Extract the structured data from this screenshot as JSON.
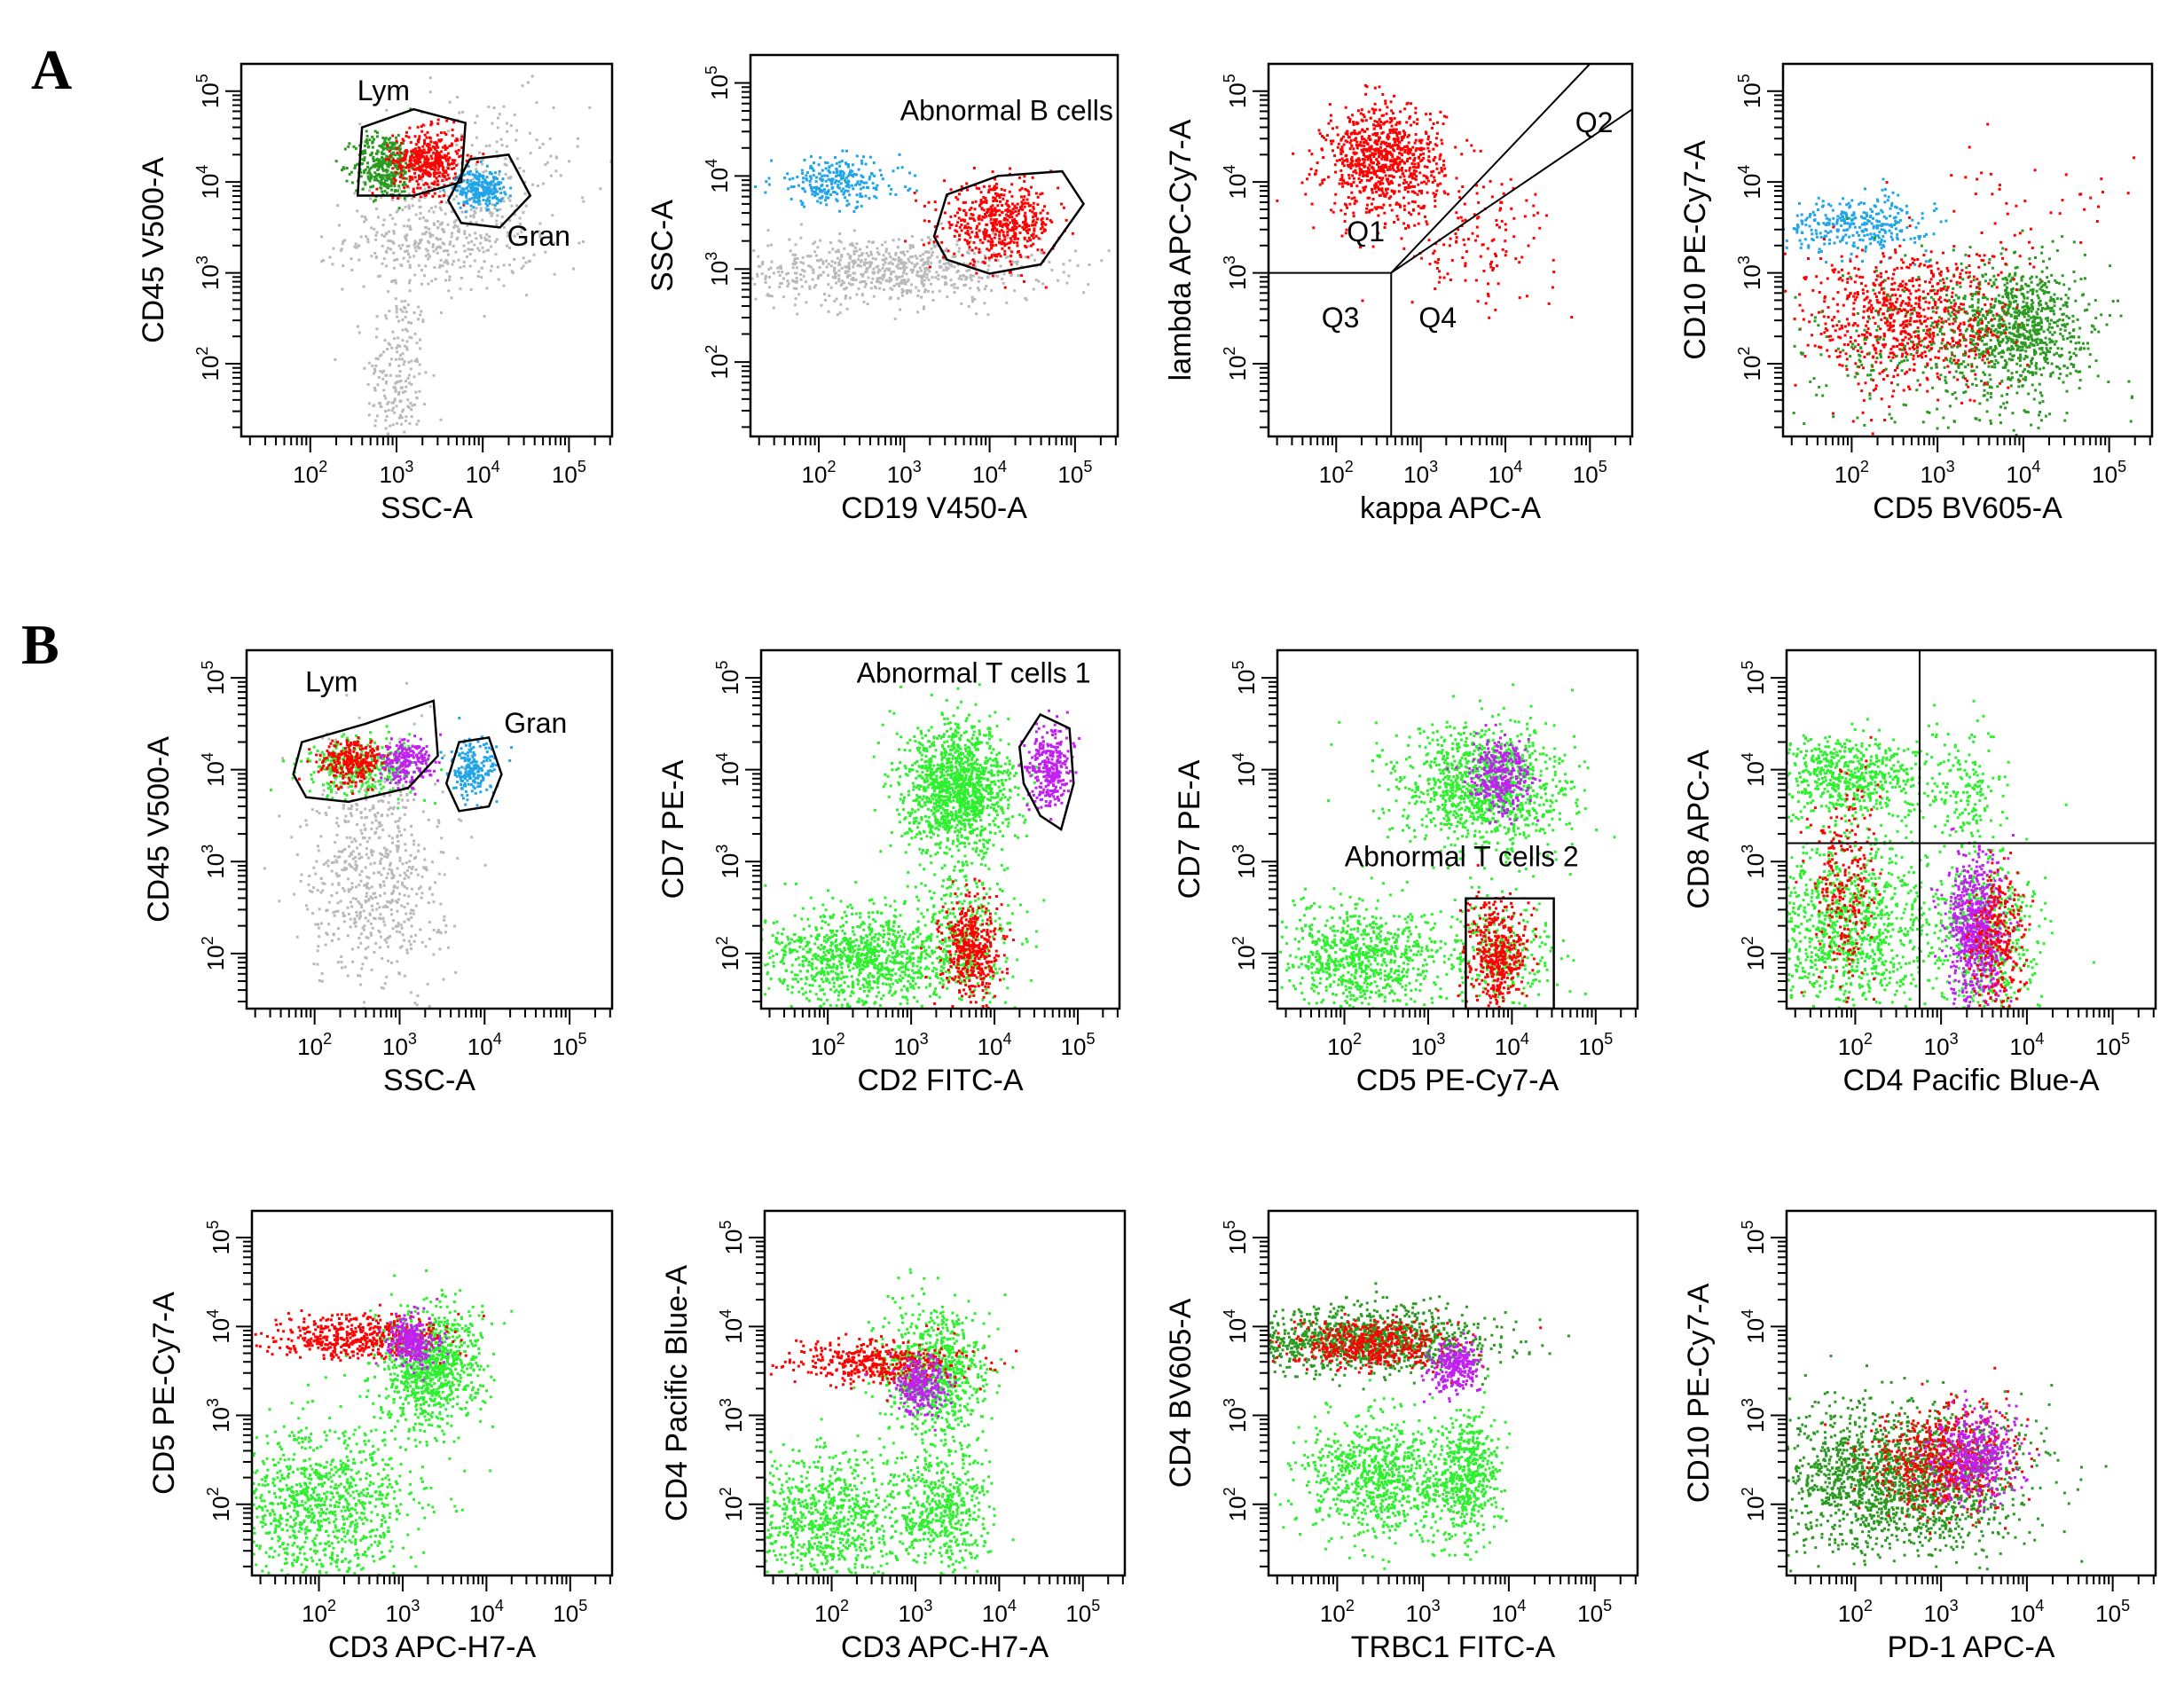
{
  "panel_labels": [
    "A",
    "B"
  ],
  "colors": {
    "gray": "#b9b9b9",
    "red": "#ff0000",
    "green": "#2a9a20",
    "light_green": "#2cf02c",
    "blue": "#1fa5e8",
    "magenta": "#c020f0",
    "axis": "#000000"
  },
  "chart_data": [
    {
      "id": "A1",
      "type": "scatter",
      "xlabel": "SSC-A",
      "ylabel": "CD45 V500-A",
      "xlim": [
        1.2,
        5.5
      ],
      "ylim": [
        1.2,
        5.3
      ],
      "xticks": [
        "10^2",
        "10^3",
        "10^4",
        "10^5"
      ],
      "yticks": [
        "10^2",
        "10^3",
        "10^4",
        "10^5"
      ],
      "clusters": [
        {
          "color": "gray",
          "cx": 3.0,
          "cy": 1.8,
          "sx": 0.18,
          "sy": 0.55,
          "n": 220
        },
        {
          "color": "gray",
          "cx": 3.5,
          "cy": 3.4,
          "sx": 0.55,
          "sy": 0.3,
          "n": 420
        },
        {
          "color": "gray",
          "cx": 4.0,
          "cy": 4.2,
          "sx": 0.6,
          "sy": 0.4,
          "n": 150
        },
        {
          "color": "green",
          "cx": 2.85,
          "cy": 4.2,
          "sx": 0.18,
          "sy": 0.18,
          "n": 360
        },
        {
          "color": "red",
          "cx": 3.35,
          "cy": 4.25,
          "sx": 0.2,
          "sy": 0.17,
          "n": 420
        },
        {
          "color": "blue",
          "cx": 3.95,
          "cy": 3.95,
          "sx": 0.14,
          "sy": 0.1,
          "n": 240
        }
      ],
      "gates": [
        {
          "points": [
            [
              2.55,
              3.85
            ],
            [
              2.6,
              4.6
            ],
            [
              3.2,
              4.8
            ],
            [
              3.8,
              4.65
            ],
            [
              3.75,
              4.0
            ],
            [
              3.2,
              3.85
            ]
          ]
        },
        {
          "points": [
            [
              3.6,
              3.8
            ],
            [
              3.85,
              4.25
            ],
            [
              4.3,
              4.3
            ],
            [
              4.55,
              3.85
            ],
            [
              4.2,
              3.5
            ],
            [
              3.75,
              3.55
            ]
          ]
        }
      ],
      "annotations": [
        {
          "text": "Lym",
          "x": 2.85,
          "y": 4.9
        },
        {
          "text": "Gran",
          "x": 4.65,
          "y": 3.3
        }
      ]
    },
    {
      "id": "A2",
      "type": "scatter",
      "xlabel": "CD19 V450-A",
      "ylabel": "SSC-A",
      "xlim": [
        1.2,
        5.5
      ],
      "ylim": [
        1.2,
        5.3
      ],
      "xticks": [
        "10^2",
        "10^3",
        "10^4",
        "10^5"
      ],
      "yticks": [
        "10^2",
        "10^3",
        "10^4",
        "10^5"
      ],
      "clusters": [
        {
          "color": "gray",
          "cx": 2.8,
          "cy": 3.0,
          "sx": 0.9,
          "sy": 0.18,
          "n": 700
        },
        {
          "color": "blue",
          "cx": 2.2,
          "cy": 3.95,
          "sx": 0.38,
          "sy": 0.13,
          "n": 260
        },
        {
          "color": "red",
          "cx": 4.1,
          "cy": 3.5,
          "sx": 0.33,
          "sy": 0.2,
          "n": 520
        }
      ],
      "gates": [
        {
          "points": [
            [
              3.35,
              3.35
            ],
            [
              3.5,
              3.8
            ],
            [
              4.1,
              4.0
            ],
            [
              4.85,
              4.05
            ],
            [
              5.1,
              3.7
            ],
            [
              4.6,
              3.05
            ],
            [
              4.0,
              2.95
            ],
            [
              3.5,
              3.1
            ]
          ]
        }
      ],
      "annotations": [
        {
          "text": "Abnormal B cells",
          "x": 4.2,
          "y": 4.6
        }
      ]
    },
    {
      "id": "A3",
      "type": "scatter",
      "xlabel": "kappa APC-A",
      "ylabel": "lambda APC-Cy7-A",
      "xlim": [
        1.2,
        5.5
      ],
      "ylim": [
        1.2,
        5.3
      ],
      "xticks": [
        "10^2",
        "10^3",
        "10^4",
        "10^5"
      ],
      "yticks": [
        "10^2",
        "10^3",
        "10^4",
        "10^5"
      ],
      "clusters": [
        {
          "color": "red",
          "cx": 2.55,
          "cy": 4.25,
          "sx": 0.35,
          "sy": 0.3,
          "n": 850
        },
        {
          "color": "red",
          "cx": 3.6,
          "cy": 3.4,
          "sx": 0.5,
          "sy": 0.35,
          "n": 140
        }
      ],
      "quadrant_lines": [
        [
          [
            1.2,
            3.0
          ],
          [
            2.65,
            3.0
          ]
        ],
        [
          [
            2.65,
            1.2
          ],
          [
            2.65,
            3.0
          ]
        ],
        [
          [
            2.65,
            3.0
          ],
          [
            5.0,
            5.3
          ]
        ],
        [
          [
            2.65,
            3.0
          ],
          [
            5.5,
            4.8
          ]
        ]
      ],
      "annotations": [
        {
          "text": "Q1",
          "x": 2.35,
          "y": 3.35
        },
        {
          "text": "Q2",
          "x": 5.05,
          "y": 4.55
        },
        {
          "text": "Q3",
          "x": 2.05,
          "y": 2.4
        },
        {
          "text": "Q4",
          "x": 3.2,
          "y": 2.4
        }
      ]
    },
    {
      "id": "A4",
      "type": "scatter",
      "xlabel": "CD5 BV605-A",
      "ylabel": "CD10 PE-Cy7-A",
      "xlim": [
        1.2,
        5.5
      ],
      "ylim": [
        1.2,
        5.3
      ],
      "xticks": [
        "10^2",
        "10^3",
        "10^4",
        "10^5"
      ],
      "yticks": [
        "10^2",
        "10^3",
        "10^4",
        "10^5"
      ],
      "clusters": [
        {
          "color": "blue",
          "cx": 2.05,
          "cy": 3.55,
          "sx": 0.42,
          "sy": 0.15,
          "n": 320
        },
        {
          "color": "green",
          "cx": 3.9,
          "cy": 2.45,
          "sx": 0.4,
          "sy": 0.35,
          "n": 800
        },
        {
          "color": "red",
          "cx": 2.65,
          "cy": 2.5,
          "sx": 0.6,
          "sy": 0.4,
          "n": 800
        },
        {
          "color": "green",
          "cx": 3.1,
          "cy": 2.1,
          "sx": 1.0,
          "sy": 0.45,
          "n": 350
        },
        {
          "color": "red",
          "cx": 4.3,
          "cy": 3.7,
          "sx": 0.6,
          "sy": 0.3,
          "n": 40
        }
      ]
    },
    {
      "id": "B1",
      "type": "scatter",
      "xlabel": "SSC-A",
      "ylabel": "CD45 V500-A",
      "xlim": [
        1.2,
        5.5
      ],
      "ylim": [
        1.4,
        5.3
      ],
      "xticks": [
        "10^2",
        "10^3",
        "10^4",
        "10^5"
      ],
      "yticks": [
        "10^2",
        "10^3",
        "10^4",
        "10^5"
      ],
      "clusters": [
        {
          "color": "gray",
          "cx": 2.7,
          "cy": 2.9,
          "sx": 0.4,
          "sy": 0.65,
          "n": 650
        },
        {
          "color": "light_green",
          "cx": 2.55,
          "cy": 4.05,
          "sx": 0.35,
          "sy": 0.16,
          "n": 340
        },
        {
          "color": "red",
          "cx": 2.45,
          "cy": 4.1,
          "sx": 0.2,
          "sy": 0.12,
          "n": 260
        },
        {
          "color": "magenta",
          "cx": 3.05,
          "cy": 4.1,
          "sx": 0.15,
          "sy": 0.12,
          "n": 220
        },
        {
          "color": "blue",
          "cx": 3.85,
          "cy": 4.0,
          "sx": 0.14,
          "sy": 0.15,
          "n": 200
        }
      ],
      "gates": [
        {
          "points": [
            [
              1.75,
              3.95
            ],
            [
              1.85,
              4.3
            ],
            [
              2.6,
              4.5
            ],
            [
              3.4,
              4.75
            ],
            [
              3.45,
              4.15
            ],
            [
              3.1,
              3.8
            ],
            [
              2.4,
              3.65
            ],
            [
              1.9,
              3.7
            ]
          ]
        },
        {
          "points": [
            [
              3.55,
              3.85
            ],
            [
              3.7,
              4.3
            ],
            [
              4.05,
              4.35
            ],
            [
              4.2,
              3.95
            ],
            [
              4.05,
              3.6
            ],
            [
              3.7,
              3.55
            ]
          ]
        }
      ],
      "annotations": [
        {
          "text": "Lym",
          "x": 2.2,
          "y": 4.85
        },
        {
          "text": "Gran",
          "x": 4.6,
          "y": 4.4
        }
      ]
    },
    {
      "id": "B2",
      "type": "scatter",
      "xlabel": "CD2 FITC-A",
      "ylabel": "CD7 PE-A",
      "xlim": [
        1.2,
        5.5
      ],
      "ylim": [
        1.4,
        5.3
      ],
      "xticks": [
        "10^2",
        "10^3",
        "10^4",
        "10^5"
      ],
      "yticks": [
        "10^2",
        "10^3",
        "10^4",
        "10^5"
      ],
      "clusters": [
        {
          "color": "light_green",
          "cx": 3.55,
          "cy": 3.8,
          "sx": 0.32,
          "sy": 0.35,
          "n": 1300
        },
        {
          "color": "light_green",
          "cx": 2.4,
          "cy": 1.95,
          "sx": 0.6,
          "sy": 0.28,
          "n": 1000
        },
        {
          "color": "light_green",
          "cx": 3.6,
          "cy": 2.2,
          "sx": 0.35,
          "sy": 0.35,
          "n": 300
        },
        {
          "color": "red",
          "cx": 3.7,
          "cy": 2.05,
          "sx": 0.17,
          "sy": 0.28,
          "n": 420
        },
        {
          "color": "magenta",
          "cx": 4.65,
          "cy": 4.05,
          "sx": 0.13,
          "sy": 0.22,
          "n": 300
        }
      ],
      "gates": [
        {
          "points": [
            [
              4.3,
              4.25
            ],
            [
              4.55,
              4.6
            ],
            [
              4.9,
              4.45
            ],
            [
              4.95,
              3.85
            ],
            [
              4.8,
              3.35
            ],
            [
              4.55,
              3.5
            ],
            [
              4.35,
              3.85
            ]
          ]
        }
      ],
      "annotations": [
        {
          "text": "Abnormal T cells 1",
          "x": 3.75,
          "y": 4.95
        }
      ]
    },
    {
      "id": "B3",
      "type": "scatter",
      "xlabel": "CD5 PE-Cy7-A",
      "ylabel": "CD7 PE-A",
      "xlim": [
        1.2,
        5.5
      ],
      "ylim": [
        1.4,
        5.3
      ],
      "xticks": [
        "10^2",
        "10^3",
        "10^4",
        "10^5"
      ],
      "yticks": [
        "10^2",
        "10^3",
        "10^4",
        "10^5"
      ],
      "clusters": [
        {
          "color": "light_green",
          "cx": 3.65,
          "cy": 3.8,
          "sx": 0.5,
          "sy": 0.35,
          "n": 1100
        },
        {
          "color": "light_green",
          "cx": 2.2,
          "cy": 1.95,
          "sx": 0.5,
          "sy": 0.3,
          "n": 800
        },
        {
          "color": "light_green",
          "cx": 3.9,
          "cy": 2.0,
          "sx": 0.35,
          "sy": 0.3,
          "n": 250
        },
        {
          "color": "magenta",
          "cx": 3.85,
          "cy": 3.95,
          "sx": 0.18,
          "sy": 0.18,
          "n": 320
        },
        {
          "color": "red",
          "cx": 3.8,
          "cy": 2.0,
          "sx": 0.17,
          "sy": 0.3,
          "n": 420
        }
      ],
      "gates": [
        {
          "points": [
            [
              3.45,
              1.4
            ],
            [
              3.45,
              2.6
            ],
            [
              4.5,
              2.6
            ],
            [
              4.5,
              1.4
            ]
          ]
        }
      ],
      "annotations": [
        {
          "text": "Abnormal T cells 2",
          "x": 3.4,
          "y": 2.95
        }
      ]
    },
    {
      "id": "B4",
      "type": "scatter",
      "xlabel": "CD4 Pacific Blue-A",
      "ylabel": "CD8 APC-A",
      "xlim": [
        1.2,
        5.5
      ],
      "ylim": [
        1.4,
        5.3
      ],
      "xticks": [
        "10^2",
        "10^3",
        "10^4",
        "10^5"
      ],
      "yticks": [
        "10^2",
        "10^3",
        "10^4",
        "10^5"
      ],
      "clusters": [
        {
          "color": "light_green",
          "cx": 1.9,
          "cy": 3.95,
          "sx": 0.5,
          "sy": 0.22,
          "n": 600
        },
        {
          "color": "light_green",
          "cx": 1.9,
          "cy": 2.3,
          "sx": 0.55,
          "sy": 0.5,
          "n": 1100
        },
        {
          "color": "light_green",
          "cx": 3.5,
          "cy": 2.2,
          "sx": 0.3,
          "sy": 0.45,
          "n": 500
        },
        {
          "color": "light_green",
          "cx": 3.3,
          "cy": 3.8,
          "sx": 0.25,
          "sy": 0.35,
          "n": 160
        },
        {
          "color": "red",
          "cx": 1.85,
          "cy": 2.8,
          "sx": 0.18,
          "sy": 0.55,
          "n": 250
        },
        {
          "color": "magenta",
          "cx": 3.4,
          "cy": 2.25,
          "sx": 0.17,
          "sy": 0.42,
          "n": 700
        },
        {
          "color": "red",
          "cx": 3.65,
          "cy": 2.1,
          "sx": 0.15,
          "sy": 0.4,
          "n": 260
        }
      ],
      "quadrant_lines": [
        [
          [
            2.75,
            1.4
          ],
          [
            2.75,
            5.3
          ]
        ],
        [
          [
            1.2,
            3.2
          ],
          [
            5.5,
            3.2
          ]
        ]
      ]
    },
    {
      "id": "B5",
      "type": "scatter",
      "xlabel": "CD3 APC-H7-A",
      "ylabel": "CD5 PE-Cy7-A",
      "xlim": [
        1.2,
        5.5
      ],
      "ylim": [
        1.2,
        5.3
      ],
      "xticks": [
        "10^2",
        "10^3",
        "10^4",
        "10^5"
      ],
      "yticks": [
        "10^2",
        "10^3",
        "10^4",
        "10^5"
      ],
      "clusters": [
        {
          "color": "light_green",
          "cx": 3.3,
          "cy": 3.55,
          "sx": 0.3,
          "sy": 0.35,
          "n": 900
        },
        {
          "color": "light_green",
          "cx": 2.0,
          "cy": 2.0,
          "sx": 0.55,
          "sy": 0.45,
          "n": 1000
        },
        {
          "color": "red",
          "cx": 2.4,
          "cy": 3.9,
          "sx": 0.55,
          "sy": 0.12,
          "n": 480
        },
        {
          "color": "magenta",
          "cx": 3.1,
          "cy": 3.85,
          "sx": 0.15,
          "sy": 0.14,
          "n": 280
        }
      ]
    },
    {
      "id": "B6",
      "type": "scatter",
      "xlabel": "CD3 APC-H7-A",
      "ylabel": "CD4 Pacific Blue-A",
      "xlim": [
        1.2,
        5.5
      ],
      "ylim": [
        1.2,
        5.3
      ],
      "xticks": [
        "10^2",
        "10^3",
        "10^4",
        "10^5"
      ],
      "yticks": [
        "10^2",
        "10^3",
        "10^4",
        "10^5"
      ],
      "clusters": [
        {
          "color": "light_green",
          "cx": 3.2,
          "cy": 3.5,
          "sx": 0.3,
          "sy": 0.35,
          "n": 800
        },
        {
          "color": "light_green",
          "cx": 1.9,
          "cy": 1.85,
          "sx": 0.5,
          "sy": 0.38,
          "n": 800
        },
        {
          "color": "light_green",
          "cx": 3.3,
          "cy": 1.95,
          "sx": 0.3,
          "sy": 0.35,
          "n": 500
        },
        {
          "color": "red",
          "cx": 2.55,
          "cy": 3.6,
          "sx": 0.5,
          "sy": 0.12,
          "n": 420
        },
        {
          "color": "magenta",
          "cx": 3.05,
          "cy": 3.35,
          "sx": 0.16,
          "sy": 0.17,
          "n": 260
        }
      ]
    },
    {
      "id": "B7",
      "type": "scatter",
      "xlabel": "TRBC1 FITC-A",
      "ylabel": "CD4 BV605-A",
      "xlim": [
        1.2,
        5.5
      ],
      "ylim": [
        1.2,
        5.3
      ],
      "xticks": [
        "10^2",
        "10^3",
        "10^4",
        "10^5"
      ],
      "yticks": [
        "10^2",
        "10^3",
        "10^4",
        "10^5"
      ],
      "clusters": [
        {
          "color": "green",
          "cx": 2.3,
          "cy": 3.85,
          "sx": 0.7,
          "sy": 0.18,
          "n": 1100
        },
        {
          "color": "red",
          "cx": 2.4,
          "cy": 3.8,
          "sx": 0.45,
          "sy": 0.13,
          "n": 450
        },
        {
          "color": "light_green",
          "cx": 2.5,
          "cy": 2.3,
          "sx": 0.45,
          "sy": 0.35,
          "n": 800
        },
        {
          "color": "light_green",
          "cx": 3.5,
          "cy": 2.35,
          "sx": 0.2,
          "sy": 0.35,
          "n": 500
        },
        {
          "color": "magenta",
          "cx": 3.35,
          "cy": 3.55,
          "sx": 0.14,
          "sy": 0.16,
          "n": 260
        }
      ]
    },
    {
      "id": "B8",
      "type": "scatter",
      "xlabel": "PD-1 APC-A",
      "ylabel": "CD10 PE-Cy7-A",
      "xlim": [
        1.2,
        5.5
      ],
      "ylim": [
        1.2,
        5.3
      ],
      "xticks": [
        "10^2",
        "10^3",
        "10^4",
        "10^5"
      ],
      "yticks": [
        "10^2",
        "10^3",
        "10^4",
        "10^5"
      ],
      "clusters": [
        {
          "color": "green",
          "cx": 2.5,
          "cy": 2.3,
          "sx": 0.75,
          "sy": 0.4,
          "n": 1800
        },
        {
          "color": "red",
          "cx": 3.0,
          "cy": 2.5,
          "sx": 0.4,
          "sy": 0.3,
          "n": 600
        },
        {
          "color": "magenta",
          "cx": 3.4,
          "cy": 2.55,
          "sx": 0.25,
          "sy": 0.25,
          "n": 420
        }
      ]
    }
  ]
}
